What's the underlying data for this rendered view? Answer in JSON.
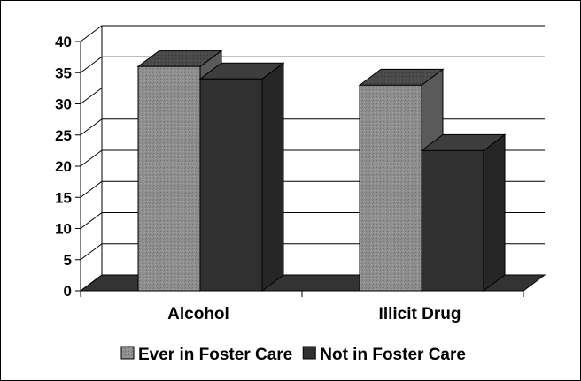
{
  "chart_data": {
    "type": "bar",
    "categories": [
      "Alcohol",
      "Illicit Drug"
    ],
    "series": [
      {
        "name": "Ever in Foster Care",
        "values": [
          36,
          33
        ],
        "color": "#8f8f8f"
      },
      {
        "name": "Not in Foster Care",
        "values": [
          34,
          22.5
        ],
        "color": "#303030"
      }
    ],
    "ylim": [
      0,
      40
    ],
    "yticks": [
      0,
      5,
      10,
      15,
      20,
      25,
      30,
      35,
      40
    ],
    "grid": true,
    "legend_position": "bottom",
    "style": "3d-column"
  }
}
